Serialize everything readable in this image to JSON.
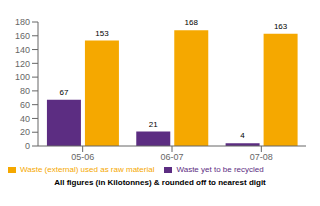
{
  "chart_data": {
    "type": "bar",
    "subtitle": "All figures (in Kilotonnes) & rounded off to nearest digit",
    "categories": [
      "05-06",
      "06-07",
      "07-08"
    ],
    "series": [
      {
        "name": "Waste yet to be recycled",
        "color": "#5c2d82",
        "values": [
          67,
          21,
          4
        ]
      },
      {
        "name": "Waste (external) used as raw material",
        "color": "#f5a800",
        "values": [
          153,
          168,
          163
        ]
      }
    ],
    "ylim": [
      0,
      180
    ],
    "yticks": [
      0,
      20,
      40,
      60,
      80,
      100,
      120,
      140,
      160,
      180
    ],
    "data_labels": true,
    "grid": false,
    "legend": "bottom"
  }
}
